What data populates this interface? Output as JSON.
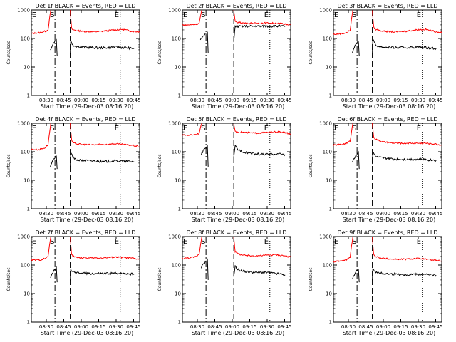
{
  "figure": {
    "panels": [
      {
        "title": "Det 1f BLACK = Events, RED = LLD"
      },
      {
        "title": "Det 2f BLACK = Events, RED = LLD"
      },
      {
        "title": "Det 3f BLACK = Events, RED = LLD"
      },
      {
        "title": "Det 4f BLACK = Events, RED = LLD"
      },
      {
        "title": "Det 5f BLACK = Events, RED = LLD"
      },
      {
        "title": "Det 6f BLACK = Events, RED = LLD"
      },
      {
        "title": "Det 7f BLACK = Events, RED = LLD"
      },
      {
        "title": "Det 8f BLACK = Events, RED = LLD"
      },
      {
        "title": "Det 9f BLACK = Events, RED = LLD"
      }
    ],
    "xlabel": "Start Time (29-Dec-03 08:16:20)",
    "ylabel": "Counts/sec",
    "x_ticks": [
      "08:30",
      "08:45",
      "09:00",
      "09:15",
      "09:30",
      "09:45"
    ],
    "y_ticks": [
      "1",
      "10",
      "100",
      "1000"
    ],
    "markers": {
      "start": "S",
      "end": "E"
    },
    "colors": {
      "events": "#000000",
      "lld": "#ff0000"
    }
  },
  "chart_data": {
    "type": "line",
    "scale": {
      "y": "log"
    },
    "x_unit": "minutes after 08:16:20",
    "xlim": [
      -2,
      37
    ],
    "ylim": [
      1,
      1000
    ],
    "series_names": [
      "Events (BLACK)",
      "LLD (RED)"
    ],
    "panels": [
      {
        "events": [
          [
            4.8,
            40
          ],
          [
            5.5,
            55
          ],
          [
            6,
            70
          ],
          [
            6.5,
            80
          ],
          [
            7,
            90
          ],
          [
            7.3,
            25
          ]
        ],
        "lld": [
          [
            -2,
            150
          ],
          [
            1,
            160
          ],
          [
            3,
            180
          ],
          [
            4,
            200
          ],
          [
            5,
            1000
          ]
        ],
        "lld_after": [
          [
            12,
            1000
          ],
          [
            12.5,
            220
          ],
          [
            13,
            200
          ],
          [
            16,
            180
          ],
          [
            20,
            170
          ],
          [
            24,
            180
          ],
          [
            28,
            200
          ],
          [
            31,
            210
          ],
          [
            34,
            180
          ],
          [
            37,
            170
          ]
        ],
        "events_after": [
          [
            12,
            30
          ],
          [
            12.2,
            80
          ],
          [
            12.7,
            65
          ],
          [
            13.5,
            55
          ],
          [
            16,
            50
          ],
          [
            20,
            48
          ],
          [
            24,
            47
          ],
          [
            28,
            50
          ],
          [
            32,
            48
          ],
          [
            35,
            45
          ]
        ],
        "dash1": 6.5,
        "dash2": 12,
        "dot": 30
      },
      {
        "events": [
          [
            4.5,
            90
          ],
          [
            5.5,
            120
          ],
          [
            6.5,
            150
          ],
          [
            7,
            170
          ],
          [
            7.3,
            30
          ]
        ],
        "lld": [
          [
            -2,
            300
          ],
          [
            1,
            300
          ],
          [
            3,
            320
          ],
          [
            4,
            350
          ],
          [
            5,
            1000
          ]
        ],
        "lld_after": [
          [
            16.5,
            1000
          ],
          [
            17,
            380
          ],
          [
            20,
            350
          ],
          [
            24,
            340
          ],
          [
            28,
            350
          ],
          [
            32,
            340
          ],
          [
            35,
            320
          ],
          [
            37,
            310
          ]
        ],
        "events_after": [
          [
            16.5,
            80
          ],
          [
            17,
            260
          ],
          [
            20,
            270
          ],
          [
            24,
            270
          ],
          [
            28,
            270
          ],
          [
            32,
            270
          ],
          [
            35,
            270
          ]
        ],
        "dash1": 6.5,
        "dash2": 16.5,
        "dot": 29.5
      },
      {
        "events": [
          [
            4.8,
            30
          ],
          [
            5.5,
            50
          ],
          [
            6.3,
            70
          ],
          [
            7,
            80
          ],
          [
            7.3,
            25
          ]
        ],
        "lld": [
          [
            -2,
            140
          ],
          [
            1,
            150
          ],
          [
            3,
            160
          ],
          [
            4,
            200
          ],
          [
            5,
            1000
          ]
        ],
        "lld_after": [
          [
            12,
            1000
          ],
          [
            12.5,
            250
          ],
          [
            13,
            210
          ],
          [
            16,
            180
          ],
          [
            20,
            170
          ],
          [
            24,
            180
          ],
          [
            28,
            200
          ],
          [
            31,
            210
          ],
          [
            34,
            180
          ],
          [
            37,
            160
          ]
        ],
        "events_after": [
          [
            12,
            30
          ],
          [
            12.2,
            100
          ],
          [
            12.7,
            70
          ],
          [
            13.5,
            55
          ],
          [
            16,
            50
          ],
          [
            20,
            48
          ],
          [
            24,
            48
          ],
          [
            28,
            50
          ],
          [
            32,
            48
          ],
          [
            35,
            45
          ]
        ],
        "dash1": 6.5,
        "dash2": 12,
        "dot": 30
      },
      {
        "events": [
          [
            4.8,
            30
          ],
          [
            5.5,
            45
          ],
          [
            6.3,
            60
          ],
          [
            7,
            70
          ],
          [
            7.3,
            25
          ]
        ],
        "lld": [
          [
            -2,
            120
          ],
          [
            1,
            120
          ],
          [
            3,
            140
          ],
          [
            4,
            180
          ],
          [
            5,
            1000
          ]
        ],
        "lld_after": [
          [
            12,
            1000
          ],
          [
            12.5,
            250
          ],
          [
            13,
            200
          ],
          [
            16,
            180
          ],
          [
            20,
            175
          ],
          [
            24,
            180
          ],
          [
            28,
            190
          ],
          [
            31,
            180
          ],
          [
            34,
            170
          ],
          [
            37,
            150
          ]
        ],
        "events_after": [
          [
            12,
            30
          ],
          [
            12.2,
            100
          ],
          [
            12.7,
            75
          ],
          [
            13.5,
            55
          ],
          [
            16,
            50
          ],
          [
            20,
            48
          ],
          [
            24,
            45
          ],
          [
            28,
            48
          ],
          [
            32,
            47
          ],
          [
            35,
            45
          ]
        ],
        "dash1": 6.5,
        "dash2": 12,
        "dot": 30
      },
      {
        "events": [
          [
            4.8,
            80
          ],
          [
            5.5,
            110
          ],
          [
            6.3,
            130
          ],
          [
            7,
            150
          ],
          [
            7.3,
            30
          ]
        ],
        "lld": [
          [
            -2,
            380
          ],
          [
            1,
            390
          ],
          [
            3,
            410
          ],
          [
            4,
            450
          ],
          [
            5,
            1000
          ]
        ],
        "lld_after": [
          [
            16.5,
            1000
          ],
          [
            17,
            500
          ],
          [
            20,
            480
          ],
          [
            24,
            450
          ],
          [
            28,
            470
          ],
          [
            32,
            500
          ],
          [
            35,
            470
          ],
          [
            37,
            420
          ]
        ],
        "events_after": [
          [
            16.5,
            60
          ],
          [
            17,
            160
          ],
          [
            18,
            120
          ],
          [
            20,
            100
          ],
          [
            24,
            85
          ],
          [
            28,
            80
          ],
          [
            32,
            85
          ],
          [
            35,
            80
          ]
        ],
        "dash1": 6.5,
        "dash2": 16.5,
        "dot": 29.5
      },
      {
        "events": [
          [
            4.8,
            45
          ],
          [
            5.5,
            60
          ],
          [
            6.3,
            80
          ],
          [
            7,
            100
          ],
          [
            7.3,
            25
          ]
        ],
        "lld": [
          [
            -2,
            170
          ],
          [
            1,
            180
          ],
          [
            3,
            200
          ],
          [
            4,
            240
          ],
          [
            5,
            1000
          ]
        ],
        "lld_after": [
          [
            12,
            1000
          ],
          [
            12.5,
            350
          ],
          [
            13,
            280
          ],
          [
            16,
            220
          ],
          [
            20,
            200
          ],
          [
            24,
            200
          ],
          [
            28,
            200
          ],
          [
            31,
            200
          ],
          [
            34,
            190
          ],
          [
            37,
            170
          ]
        ],
        "events_after": [
          [
            12,
            35
          ],
          [
            12.2,
            100
          ],
          [
            12.7,
            80
          ],
          [
            13.5,
            65
          ],
          [
            16,
            60
          ],
          [
            20,
            55
          ],
          [
            24,
            55
          ],
          [
            28,
            55
          ],
          [
            32,
            52
          ],
          [
            35,
            50
          ]
        ],
        "dash1": 6.5,
        "dash2": 12,
        "dot": 30
      },
      {
        "events": [
          [
            4.8,
            35
          ],
          [
            5.5,
            50
          ],
          [
            6.3,
            65
          ],
          [
            7,
            80
          ],
          [
            7.3,
            25
          ]
        ],
        "lld": [
          [
            -2,
            150
          ],
          [
            1,
            150
          ],
          [
            3,
            170
          ],
          [
            4,
            200
          ],
          [
            5,
            1000
          ]
        ],
        "lld_after": [
          [
            12,
            1000
          ],
          [
            12.5,
            250
          ],
          [
            13,
            200
          ],
          [
            16,
            180
          ],
          [
            20,
            175
          ],
          [
            24,
            180
          ],
          [
            28,
            190
          ],
          [
            31,
            185
          ],
          [
            34,
            175
          ],
          [
            37,
            160
          ]
        ],
        "events_after": [
          [
            12,
            30
          ],
          [
            12.2,
            70
          ],
          [
            12.7,
            60
          ],
          [
            13.5,
            55
          ],
          [
            16,
            52
          ],
          [
            20,
            50
          ],
          [
            24,
            50
          ],
          [
            28,
            52
          ],
          [
            32,
            50
          ],
          [
            35,
            48
          ]
        ],
        "dash1": 6.5,
        "dash2": 12,
        "dot": 30
      },
      {
        "events": [
          [
            4.8,
            80
          ],
          [
            5.5,
            110
          ],
          [
            6.3,
            130
          ],
          [
            7,
            160
          ],
          [
            7.3,
            30
          ]
        ],
        "lld": [
          [
            -2,
            170
          ],
          [
            1,
            180
          ],
          [
            3,
            200
          ],
          [
            4,
            240
          ],
          [
            5,
            1000
          ]
        ],
        "lld_after": [
          [
            16.5,
            1000
          ],
          [
            17,
            300
          ],
          [
            18,
            250
          ],
          [
            20,
            220
          ],
          [
            24,
            210
          ],
          [
            28,
            220
          ],
          [
            32,
            230
          ],
          [
            35,
            210
          ],
          [
            37,
            190
          ]
        ],
        "events_after": [
          [
            16.5,
            40
          ],
          [
            17,
            90
          ],
          [
            18,
            70
          ],
          [
            20,
            60
          ],
          [
            24,
            55
          ],
          [
            28,
            55
          ],
          [
            32,
            50
          ],
          [
            35,
            45
          ]
        ],
        "dash1": 6.5,
        "dash2": 16.5,
        "dot": 29.5
      },
      {
        "events": [
          [
            4.8,
            30
          ],
          [
            5.5,
            45
          ],
          [
            6.3,
            60
          ],
          [
            7,
            70
          ],
          [
            7.3,
            25
          ]
        ],
        "lld": [
          [
            -2,
            130
          ],
          [
            1,
            140
          ],
          [
            3,
            160
          ],
          [
            4,
            190
          ],
          [
            5,
            1000
          ]
        ],
        "lld_after": [
          [
            12,
            1000
          ],
          [
            12.5,
            250
          ],
          [
            13,
            200
          ],
          [
            16,
            170
          ],
          [
            20,
            160
          ],
          [
            24,
            160
          ],
          [
            28,
            170
          ],
          [
            31,
            160
          ],
          [
            34,
            150
          ],
          [
            37,
            140
          ]
        ],
        "events_after": [
          [
            12,
            30
          ],
          [
            12.2,
            80
          ],
          [
            12.7,
            65
          ],
          [
            13.5,
            55
          ],
          [
            16,
            50
          ],
          [
            20,
            48
          ],
          [
            24,
            46
          ],
          [
            28,
            48
          ],
          [
            32,
            46
          ],
          [
            35,
            44
          ]
        ],
        "dash1": 6.5,
        "dash2": 12,
        "dot": 30
      }
    ]
  }
}
